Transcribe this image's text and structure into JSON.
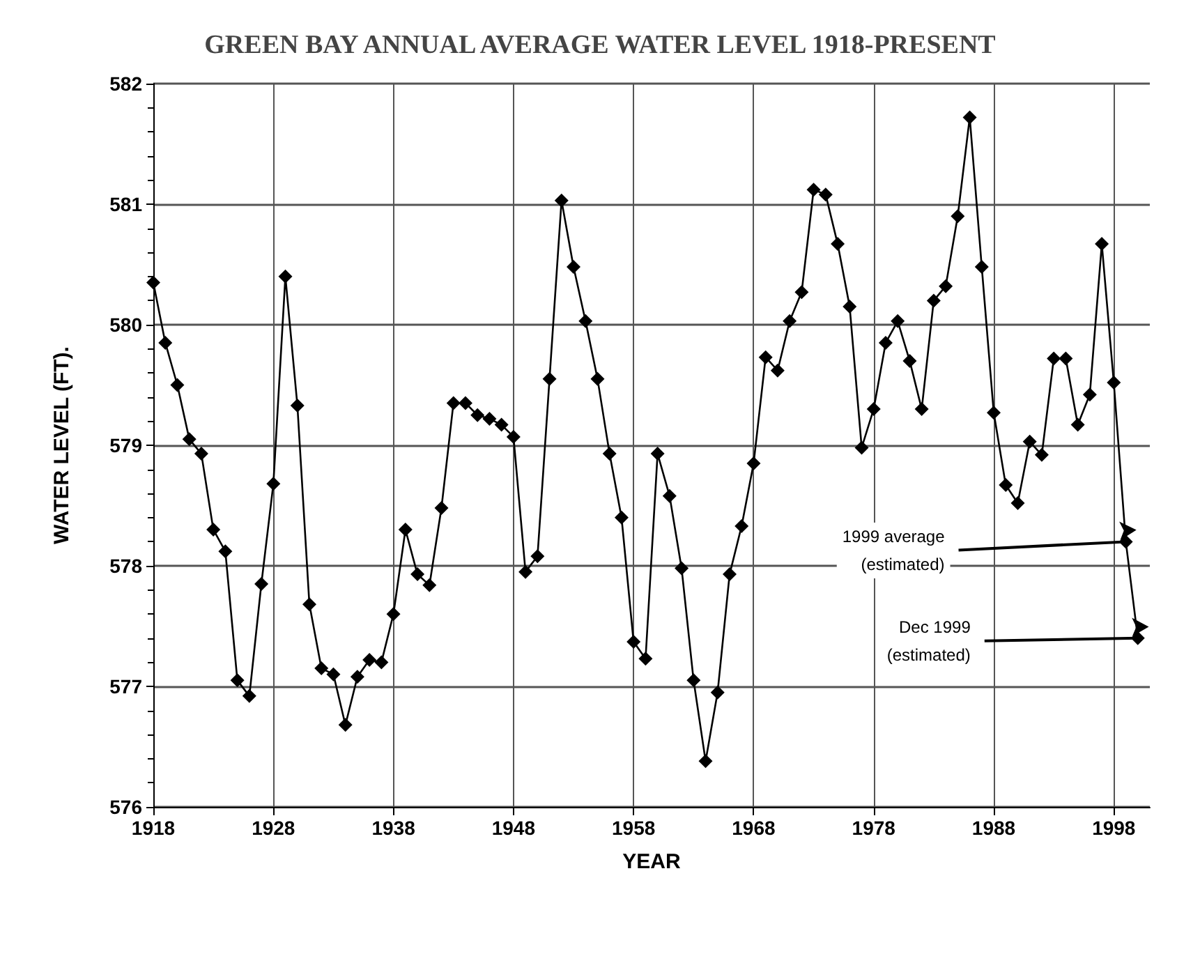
{
  "chart_data": {
    "type": "line",
    "title": "GREEN BAY ANNUAL AVERAGE WATER LEVEL 1918-PRESENT",
    "xlabel": "YEAR",
    "ylabel": "WATER LEVEL (FT).",
    "x": [
      1918,
      1919,
      1920,
      1921,
      1922,
      1923,
      1924,
      1925,
      1926,
      1927,
      1928,
      1929,
      1930,
      1931,
      1932,
      1933,
      1934,
      1935,
      1936,
      1937,
      1938,
      1939,
      1940,
      1941,
      1942,
      1943,
      1944,
      1945,
      1946,
      1947,
      1948,
      1949,
      1950,
      1951,
      1952,
      1953,
      1954,
      1955,
      1956,
      1957,
      1958,
      1959,
      1960,
      1961,
      1962,
      1963,
      1964,
      1965,
      1966,
      1967,
      1968,
      1969,
      1970,
      1971,
      1972,
      1973,
      1974,
      1975,
      1976,
      1977,
      1978,
      1979,
      1980,
      1981,
      1982,
      1983,
      1984,
      1985,
      1986,
      1987,
      1988,
      1989,
      1990,
      1991,
      1992,
      1993,
      1994,
      1995,
      1996,
      1997,
      1998,
      1999,
      2000
    ],
    "series": [
      {
        "color": "#000000",
        "values": [
          580.35,
          579.85,
          579.5,
          579.05,
          578.93,
          578.3,
          578.12,
          577.05,
          576.92,
          577.85,
          578.68,
          580.4,
          579.33,
          577.68,
          577.15,
          577.1,
          576.68,
          577.08,
          577.22,
          577.2,
          577.6,
          578.3,
          577.93,
          577.84,
          578.48,
          579.35,
          579.35,
          579.25,
          579.22,
          579.17,
          579.07,
          577.95,
          578.08,
          579.55,
          581.03,
          580.48,
          580.03,
          579.55,
          578.93,
          578.4,
          577.37,
          577.23,
          578.93,
          578.58,
          577.98,
          577.05,
          576.38,
          576.95,
          577.93,
          578.33,
          578.85,
          579.73,
          579.62,
          580.03,
          580.27,
          581.12,
          581.08,
          580.67,
          580.15,
          578.98,
          579.3,
          579.85,
          580.03,
          579.7,
          579.3,
          580.2,
          580.32,
          580.9,
          581.72,
          580.48,
          579.27,
          578.67,
          578.52,
          579.03,
          578.92,
          579.72,
          579.72,
          579.17,
          579.42,
          580.67,
          579.52,
          578.2,
          577.4
        ]
      }
    ],
    "xlim": [
      1918,
      2001
    ],
    "xticks": [
      1918,
      1928,
      1938,
      1948,
      1958,
      1968,
      1978,
      1988,
      1998
    ],
    "ylim": [
      576,
      582
    ],
    "yticks": [
      576,
      577,
      578,
      579,
      580,
      581,
      582
    ],
    "grid": true,
    "marker": "diamond",
    "line_style": "solid",
    "annotations": [
      {
        "text": "1999 average\n(estimated)",
        "x": 1999,
        "y": 578.2
      },
      {
        "text": "Dec 1999\n(estimated)",
        "x": 2000,
        "y": 577.4
      }
    ]
  }
}
